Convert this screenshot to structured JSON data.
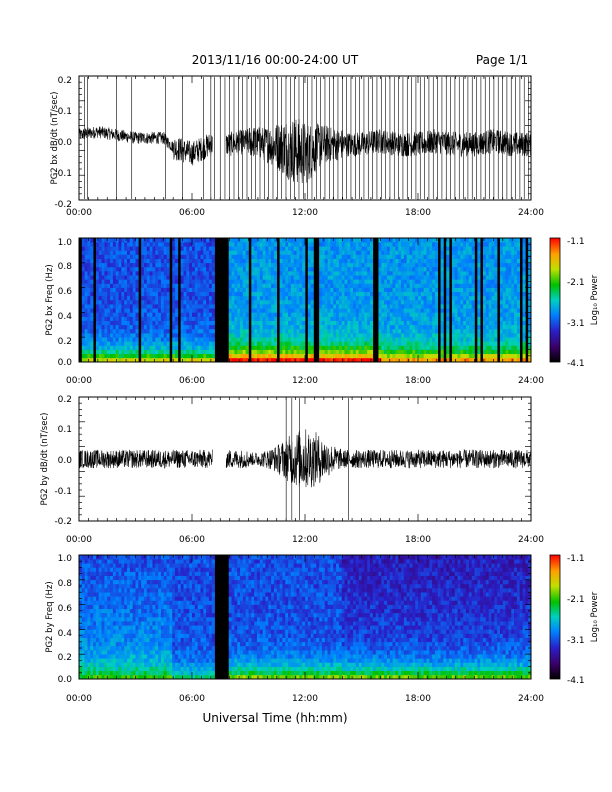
{
  "header": {
    "title": "2013/11/16  00:00-24:00 UT",
    "page": "Page 1/1"
  },
  "x_axis": {
    "label": "Universal Time (hh:mm)",
    "ticks": [
      "00:00",
      "06:00",
      "12:00",
      "18:00",
      "24:00"
    ]
  },
  "colorbar": {
    "ticks": [
      "-1.1",
      "-2.1",
      "-3.1",
      "-4.1"
    ],
    "label": "Log₁₀ Power"
  },
  "chart_data": [
    {
      "type": "line",
      "ylabel": "PG2 bx dB/dt (nT/sec)",
      "xlim": [
        0,
        24
      ],
      "ylim": [
        -0.2,
        0.2
      ],
      "yticks": [
        "0.2",
        "0.1",
        "0.0",
        "-0.1",
        "-0.2"
      ],
      "grid": false,
      "series": [
        {
          "x": [
            0,
            1,
            2,
            3,
            4,
            4.5,
            5,
            6,
            7,
            8,
            9,
            10,
            11,
            12,
            13,
            14,
            15,
            16,
            17,
            18,
            19,
            20,
            21,
            22,
            23,
            24
          ],
          "values": [
            0.01,
            0.02,
            0.01,
            0.0,
            0.0,
            0.0,
            -0.03,
            -0.05,
            -0.02,
            -0.02,
            -0.01,
            -0.02,
            -0.03,
            -0.05,
            -0.02,
            -0.02,
            -0.02,
            -0.01,
            -0.02,
            -0.02,
            -0.01,
            -0.02,
            -0.02,
            -0.01,
            -0.02,
            -0.02
          ]
        }
      ]
    },
    {
      "type": "heatmap",
      "ylabel": "PG2 bx Freq (Hz)",
      "xlim": [
        0,
        24
      ],
      "ylim": [
        0.0,
        1.0
      ],
      "yticks": [
        "1.0",
        "0.8",
        "0.6",
        "0.4",
        "0.2",
        "0.0"
      ],
      "color_range": [
        -4.1,
        -1.1
      ]
    },
    {
      "type": "line",
      "ylabel": "PG2 by dB/dt (nT/sec)",
      "xlim": [
        0,
        24
      ],
      "ylim": [
        -0.2,
        0.2
      ],
      "yticks": [
        "0.2",
        "0.1",
        "0.0",
        "-0.1",
        "-0.2"
      ],
      "grid": false,
      "series": [
        {
          "x": [
            0,
            1,
            2,
            3,
            4,
            5,
            6,
            7,
            8,
            9,
            10,
            11,
            12,
            13,
            14,
            15,
            16,
            17,
            18,
            19,
            20,
            21,
            22,
            23,
            24
          ],
          "values": [
            0.0,
            0.0,
            0.0,
            0.0,
            0.0,
            0.0,
            0.0,
            0.0,
            0.0,
            0.0,
            0.0,
            0.0,
            0.0,
            0.0,
            0.0,
            0.0,
            0.0,
            0.0,
            0.0,
            0.0,
            0.0,
            0.0,
            0.0,
            0.0,
            0.0
          ]
        }
      ]
    },
    {
      "type": "heatmap",
      "ylabel": "PG2 by Freq (Hz)",
      "xlim": [
        0,
        24
      ],
      "ylim": [
        0.0,
        1.0
      ],
      "yticks": [
        "1.0",
        "0.8",
        "0.6",
        "0.4",
        "0.2",
        "0.0"
      ],
      "color_range": [
        -4.1,
        -1.1
      ]
    }
  ]
}
